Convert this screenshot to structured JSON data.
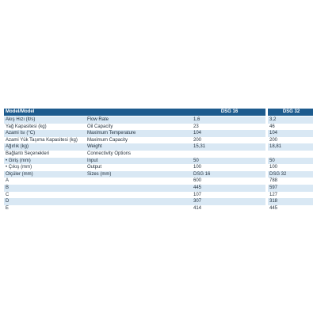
{
  "table": {
    "header": [
      "Model/Model",
      "DSG 16",
      "DSG 32"
    ],
    "rows": [
      [
        "Akış Hızı (lt/s)",
        "Flow Rate",
        "1,6",
        "3,2"
      ],
      [
        "Yağ Kapasitesi (kg)",
        "Oil Capacity",
        "23",
        "46"
      ],
      [
        "Azami Isı (°C)",
        "Maximum Temperature",
        "104",
        "104"
      ],
      [
        "Azami Yük Taşıma Kapasitesi (kg)",
        "Maximum Capacity",
        "200",
        "200"
      ],
      [
        "Ağırlık (kg)",
        "Weight",
        "15,31",
        "18,81"
      ],
      [
        "Bağlantı Seçenekleri",
        "Connectivity Options",
        null,
        null
      ],
      [
        "• Giriş (mm)",
        "Input",
        "50",
        "50"
      ],
      [
        "• Çıkış (mm)",
        "Output",
        "100",
        "100"
      ],
      [
        "Ölçüler (mm)",
        "Sizes (mm)",
        "DSG 16",
        "DSG 32"
      ],
      [
        "A",
        null,
        "600",
        "788"
      ],
      [
        "B",
        null,
        "445",
        "597"
      ],
      [
        "C",
        null,
        "107",
        "127"
      ],
      [
        "D",
        null,
        "307",
        "318"
      ],
      [
        "E",
        null,
        "414",
        "445"
      ]
    ]
  }
}
